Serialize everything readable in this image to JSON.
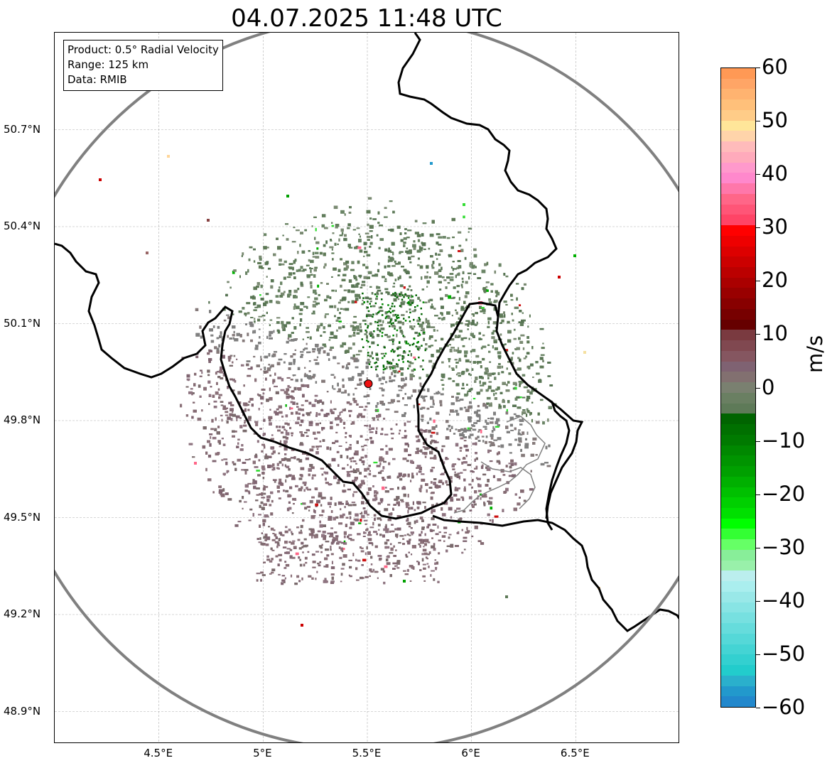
{
  "title": "04.07.2025 11:48 UTC",
  "info": {
    "product": "Product: 0.5° Radial Velocity",
    "range": "Range: 125 km",
    "source": "Data: RMIB"
  },
  "map": {
    "lon_range": [
      4.0,
      7.0
    ],
    "lat_range": [
      48.8,
      51.0
    ],
    "radar_site": {
      "lon": 5.505,
      "lat": 49.914
    },
    "range_ring_color": "#808080",
    "border_color": "#000000",
    "grid_lines": true,
    "lat_labels": [
      "50.7°N",
      "50.4°N",
      "50.1°N",
      "49.8°N",
      "49.5°N",
      "49.2°N",
      "48.9°N"
    ],
    "lon_labels": [
      "4.5°E",
      "5°E",
      "5.5°E",
      "6°E",
      "6.5°E"
    ]
  },
  "colorbar": {
    "unit": "m/s",
    "min": -60,
    "max": 60,
    "tick_labels": [
      "60",
      "50",
      "40",
      "30",
      "20",
      "10",
      "0",
      "−10",
      "−20",
      "−30",
      "−40",
      "−50",
      "−60"
    ],
    "colors_top_to_bottom": [
      "#ff9955",
      "#ffa566",
      "#ffb370",
      "#ffc07a",
      "#ffcc88",
      "#ffe699",
      "#ffd4aa",
      "#ffbbbb",
      "#ffaabb",
      "#ff99cc",
      "#ff88cc",
      "#ff77aa",
      "#ff6688",
      "#ff5577",
      "#ff4466",
      "#ff0000",
      "#ee0000",
      "#dd0000",
      "#cc0000",
      "#bb0000",
      "#aa0000",
      "#990000",
      "#880000",
      "#770000",
      "#660000",
      "#7a3a40",
      "#804850",
      "#855660",
      "#7f6272",
      "#827070",
      "#7a8070",
      "#6a7f62",
      "#5e7a58",
      "#006400",
      "#007000",
      "#007a00",
      "#008800",
      "#009400",
      "#00a000",
      "#00b000",
      "#00c000",
      "#00d000",
      "#00e000",
      "#00ff00",
      "#33ff33",
      "#66ff66",
      "#88ee99",
      "#99f0aa",
      "#bbeeee",
      "#aaeeee",
      "#99e8e8",
      "#88e4e4",
      "#77e0e0",
      "#66dcdc",
      "#55d8d8",
      "#44d4d4",
      "#33d0d0",
      "#22cccc",
      "#2ab0cc",
      "#2299cc",
      "#2288cc"
    ]
  }
}
